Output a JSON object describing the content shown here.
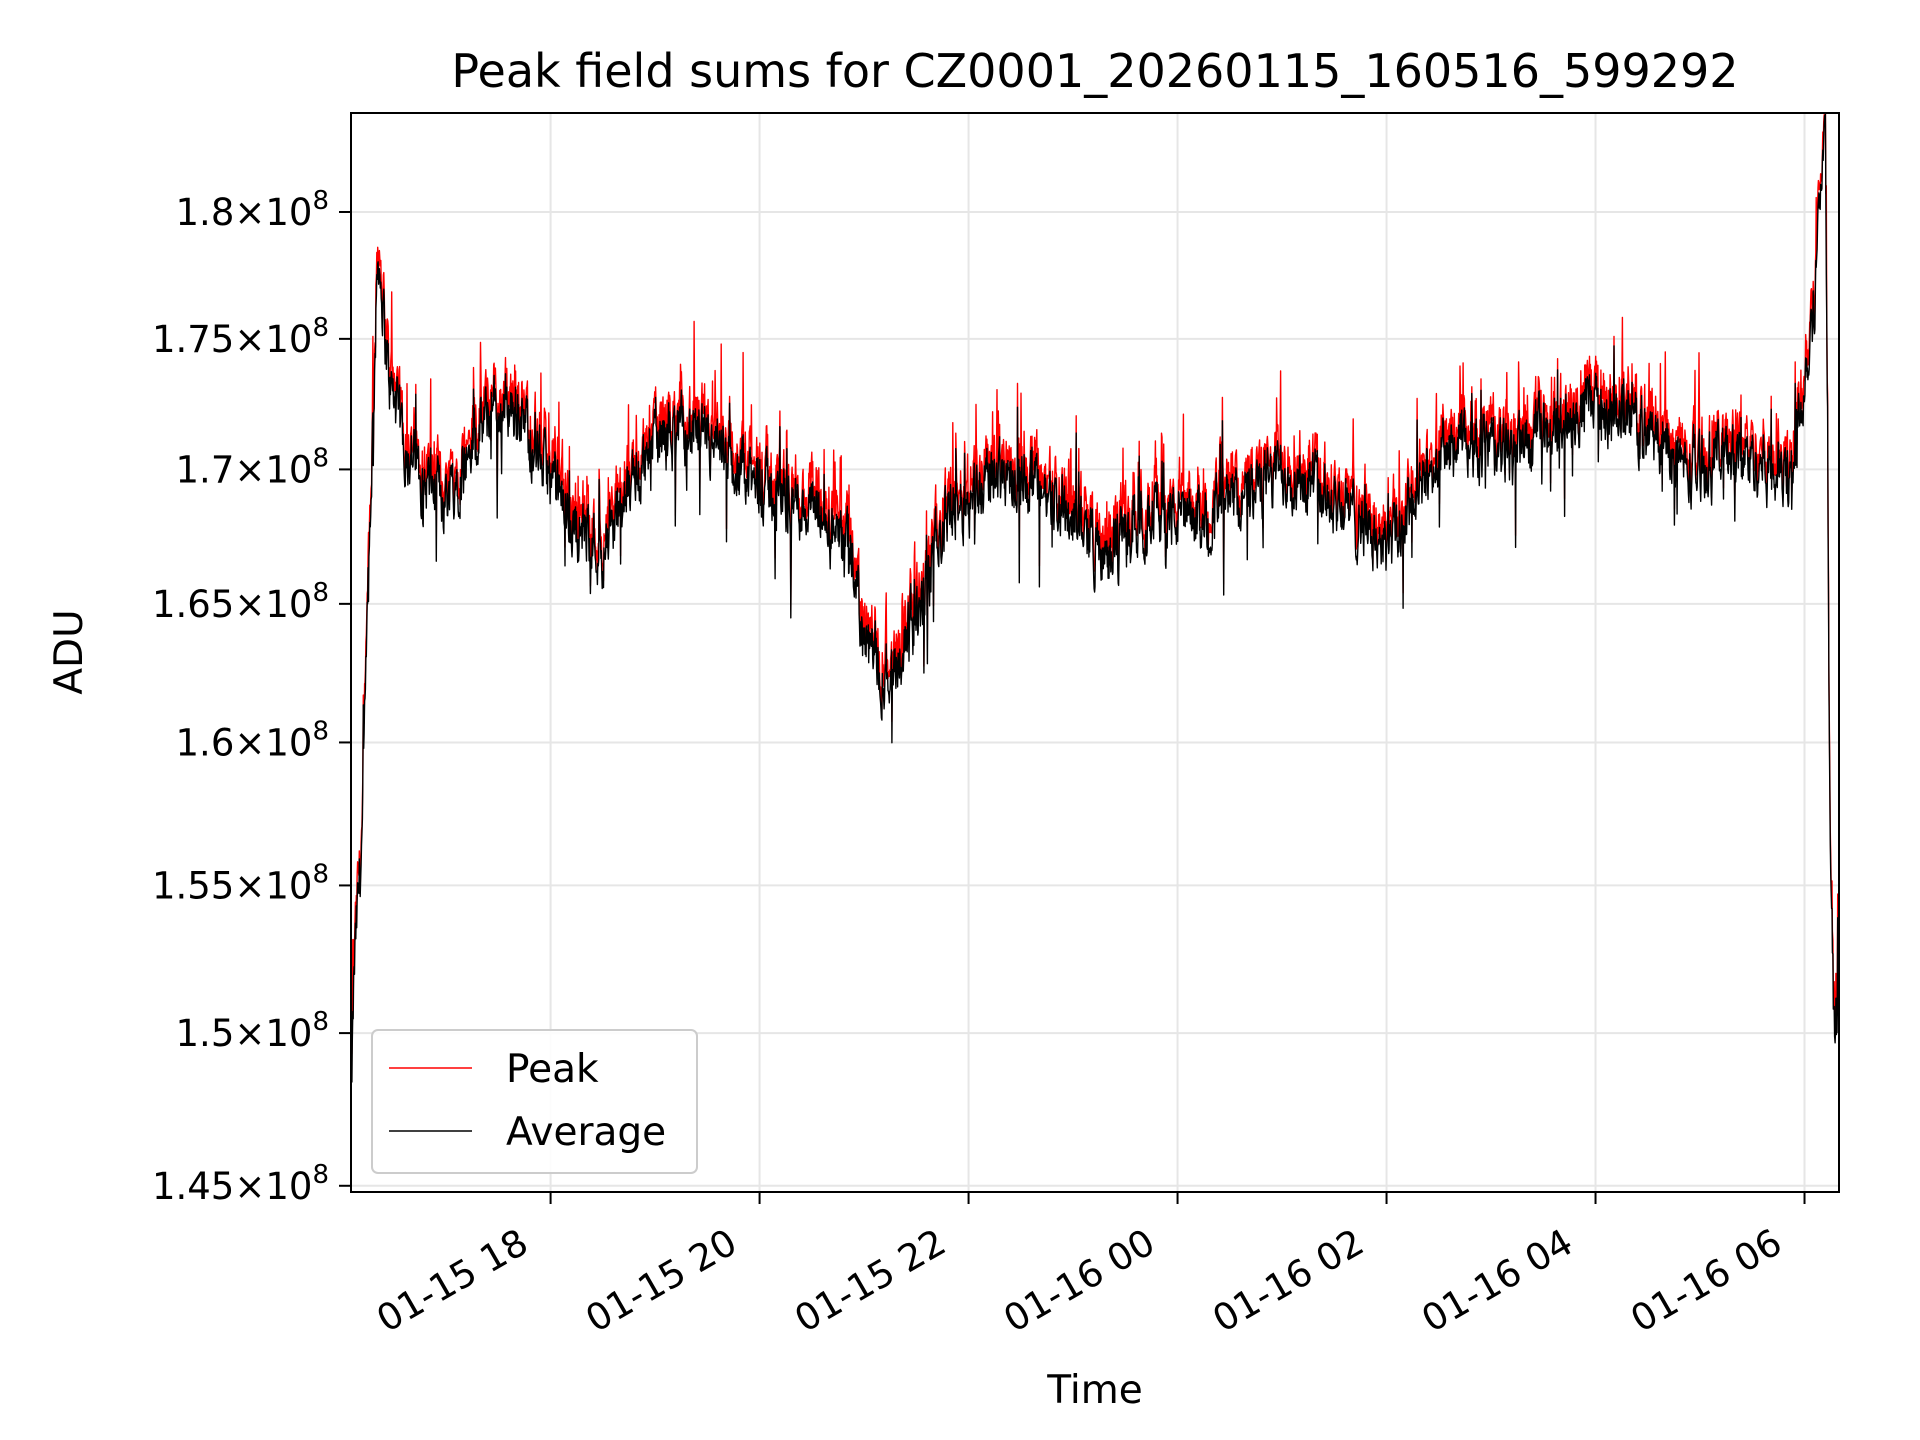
{
  "chart_data": {
    "type": "line",
    "title": "Peak field sums for CZ0001_20260115_160516_599292",
    "xlabel": "Time",
    "ylabel": "ADU",
    "yscale": "log",
    "ylim": [
      144800000,
      184000000
    ],
    "xlim_hours": [
      16.09,
      30.33
    ],
    "grid": true,
    "legend_loc": "lower left",
    "x_ticks": [
      {
        "hours": 18,
        "label": "01-15 18"
      },
      {
        "hours": 20,
        "label": "01-15 20"
      },
      {
        "hours": 22,
        "label": "01-15 22"
      },
      {
        "hours": 24,
        "label": "01-16 00"
      },
      {
        "hours": 26,
        "label": "01-16 02"
      },
      {
        "hours": 28,
        "label": "01-16 04"
      },
      {
        "hours": 30,
        "label": "01-16 06"
      }
    ],
    "y_ticks": [
      {
        "value": 145000000,
        "mantissa": "1.45",
        "exponent": "8"
      },
      {
        "value": 150000000,
        "mantissa": "1.5",
        "exponent": "8"
      },
      {
        "value": 155000000,
        "mantissa": "1.55",
        "exponent": "8"
      },
      {
        "value": 160000000,
        "mantissa": "1.6",
        "exponent": "8"
      },
      {
        "value": 165000000,
        "mantissa": "1.65",
        "exponent": "8"
      },
      {
        "value": 170000000,
        "mantissa": "1.7",
        "exponent": "8"
      },
      {
        "value": 175000000,
        "mantissa": "1.75",
        "exponent": "8"
      },
      {
        "value": 180000000,
        "mantissa": "1.8",
        "exponent": "8"
      }
    ],
    "series": [
      {
        "name": "Peak",
        "color": "#ff0000",
        "offset": 600000
      },
      {
        "name": "Average",
        "color": "#000000",
        "offset": 0
      }
    ],
    "baseline_hours": [
      16.09,
      16.12,
      16.2,
      16.3,
      16.35,
      16.45,
      16.6,
      16.8,
      17.0,
      17.2,
      17.4,
      17.6,
      17.8,
      18.0,
      18.2,
      18.5,
      18.8,
      19.0,
      19.3,
      19.6,
      19.9,
      20.2,
      20.5,
      20.7,
      20.9,
      21.0,
      21.2,
      21.4,
      21.6,
      21.8,
      22.0,
      22.3,
      22.6,
      22.9,
      23.1,
      23.3,
      23.5,
      23.8,
      24.1,
      24.4,
      24.7,
      25.0,
      25.3,
      25.6,
      25.8,
      26.0,
      26.1,
      26.3,
      26.5,
      26.8,
      27.1,
      27.4,
      27.7,
      28.0,
      28.3,
      28.6,
      28.9,
      29.2,
      29.5,
      29.7,
      29.85,
      30.0,
      30.1,
      30.15,
      30.2,
      30.24,
      30.28,
      30.33
    ],
    "baseline_values": [
      147000000,
      152000000,
      157000000,
      172000000,
      178500000,
      173500000,
      171000000,
      169500000,
      169000000,
      170500000,
      172000000,
      172500000,
      171500000,
      169500000,
      168000000,
      167000000,
      169500000,
      171000000,
      171500000,
      170500000,
      169500000,
      169000000,
      168500000,
      167500000,
      166500000,
      163500000,
      162500000,
      163500000,
      165500000,
      168500000,
      169000000,
      170000000,
      169500000,
      168500000,
      168000000,
      166500000,
      167500000,
      168500000,
      168000000,
      168500000,
      169000000,
      170000000,
      169500000,
      168500000,
      168000000,
      167000000,
      167500000,
      169000000,
      170500000,
      171000000,
      170500000,
      171000000,
      172000000,
      172500000,
      172000000,
      171000000,
      170000000,
      170500000,
      170500000,
      170000000,
      169500000,
      173500000,
      177000000,
      181000000,
      183000000,
      158000000,
      150000000,
      151000000
    ],
    "noise_amplitude": 2200000,
    "samples": 3400
  }
}
